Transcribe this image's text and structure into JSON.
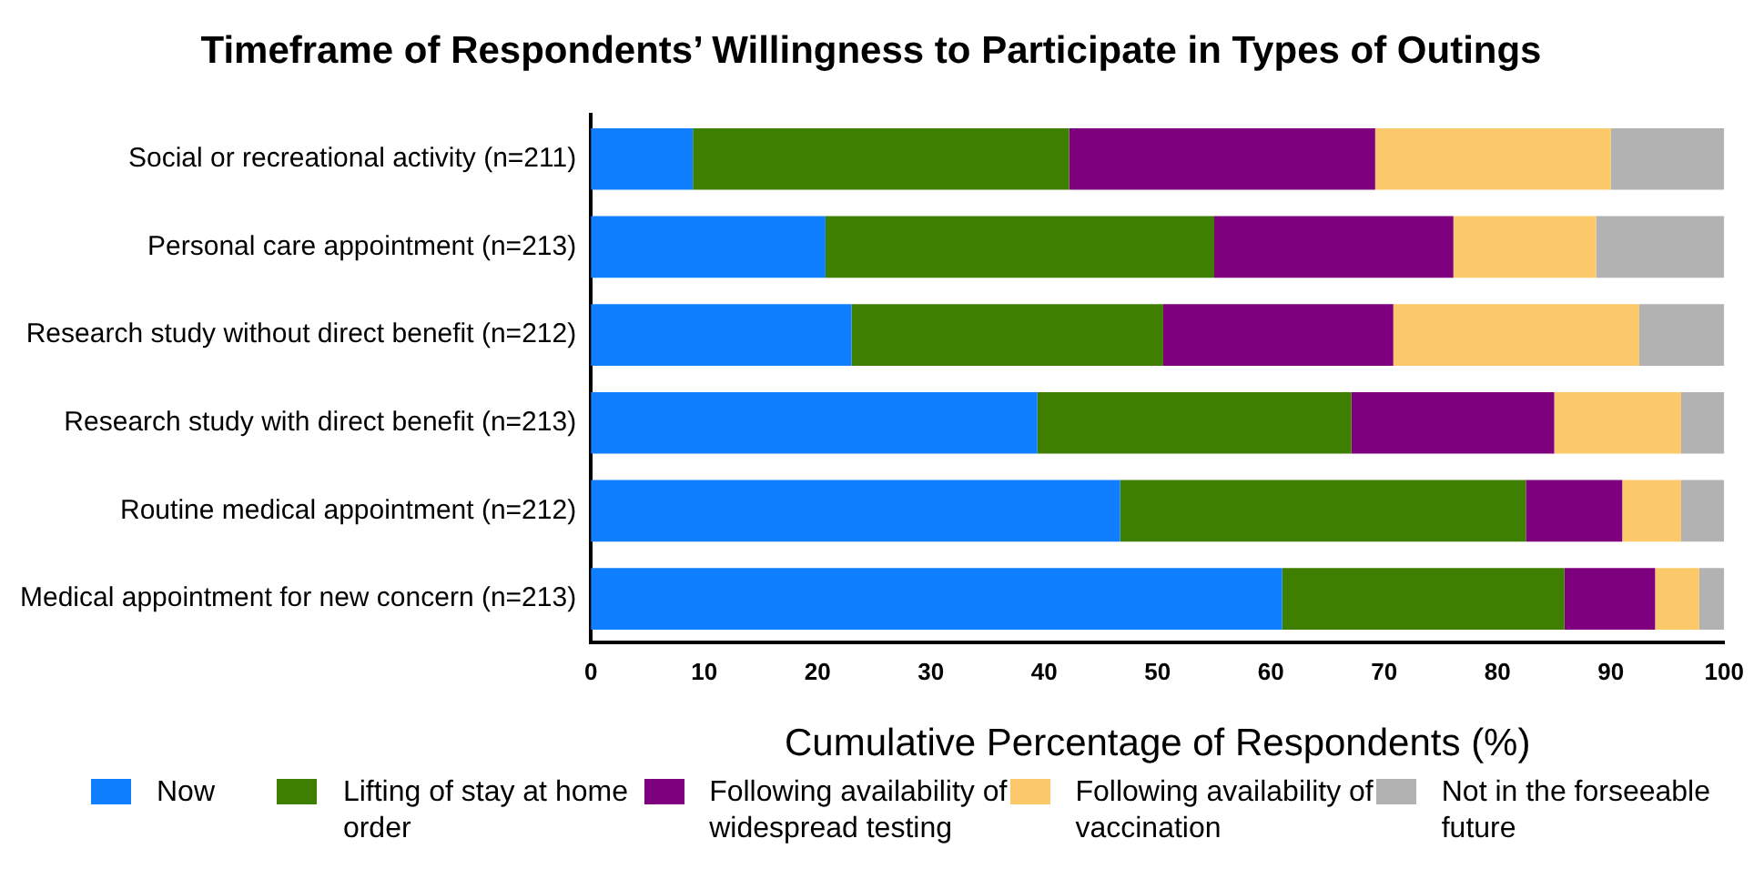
{
  "chart_data": {
    "type": "bar",
    "orientation": "horizontal",
    "stacked": true,
    "title": "Timeframe of Respondents’ Willingness to Participate in Types of Outings",
    "xlabel": "Cumulative Percentage of Respondents (%)",
    "categories": [
      "Social or recreational activity (n=211)",
      "Personal care appointment (n=213)",
      "Research study without direct benefit (n=212)",
      "Research study with direct benefit (n=213)",
      "Routine medical appointment (n=212)",
      "Medical appointment for new concern (n=213)"
    ],
    "series": [
      {
        "name": "Now",
        "color": "#0f7fff",
        "values": [
          9.0,
          20.7,
          23.0,
          39.4,
          46.7,
          61.0
        ]
      },
      {
        "name": "Lifting of stay at home order",
        "color": "#3f7f00",
        "values": [
          33.2,
          34.3,
          27.5,
          27.7,
          35.8,
          24.9
        ]
      },
      {
        "name": "Following availability of widespread testing",
        "color": "#7f007f",
        "values": [
          27.0,
          21.1,
          20.3,
          17.9,
          8.5,
          8.0
        ]
      },
      {
        "name": "Following availability of vaccination",
        "color": "#fcc96a",
        "values": [
          20.8,
          12.6,
          21.7,
          11.2,
          5.2,
          3.9
        ]
      },
      {
        "name": "Not in the forseeable future",
        "color": "#b2b2b2",
        "values": [
          10.0,
          11.3,
          7.5,
          3.8,
          3.8,
          2.2
        ]
      }
    ],
    "xlim": [
      0,
      100
    ],
    "xticks": [
      0,
      10,
      20,
      30,
      40,
      50,
      60,
      70,
      80,
      90,
      100
    ],
    "grid": false,
    "legend": "bottom"
  }
}
